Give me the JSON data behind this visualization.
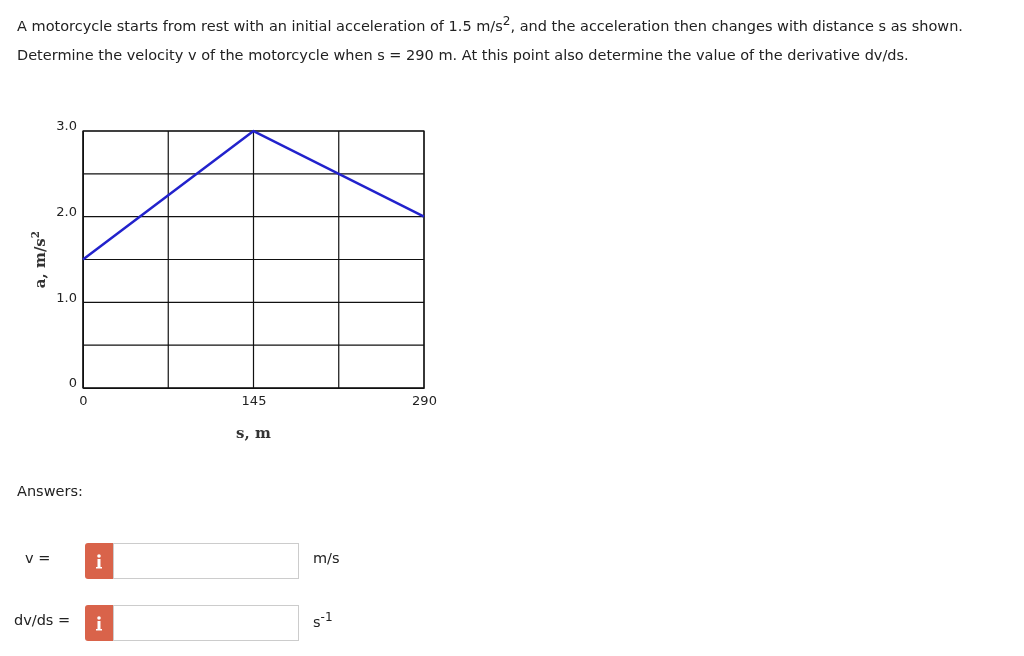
{
  "chart_data": {
    "type": "line",
    "title": "A motorcycle starts from rest with an initial acceleration of 1.5 m/s$^{2}$, and the acceleration then changes with distance s as shown.",
    "subtitle": "Determine the velocity v of the motorcycle when s = 290 m. At this point also determine the value of the derivative dv/ds.",
    "xlabel": "s, m",
    "ylabel": "a, m/s$^{2}$",
    "x": [
      0,
      145,
      290
    ],
    "series": [
      {
        "color": "#2222cc",
        "values": [
          1.5,
          3,
          2
        ]
      }
    ],
    "xlim": [
      0,
      290
    ],
    "xticks": [
      0,
      {
        "value": 72.5,
        "label": null
      },
      145,
      {
        "value": 217.5,
        "label": null
      },
      290
    ],
    "ylim": [
      0,
      3
    ],
    "yticks": [
      0,
      {
        "value": 0.5,
        "label": null
      },
      {
        "value": 1,
        "label": "1.0"
      },
      {
        "value": 1.5,
        "label": null
      },
      {
        "value": 2,
        "label": "2.0"
      },
      {
        "value": 2.5,
        "label": null
      },
      {
        "value": 3,
        "label": "3.0"
      }
    ],
    "grid": true,
    "marker": "none",
    "line_style": "solid",
    "annotations": [
      "Answers:",
      "v =",
      "m/s",
      "dv/ds =",
      "s$^{-1}$"
    ]
  }
}
